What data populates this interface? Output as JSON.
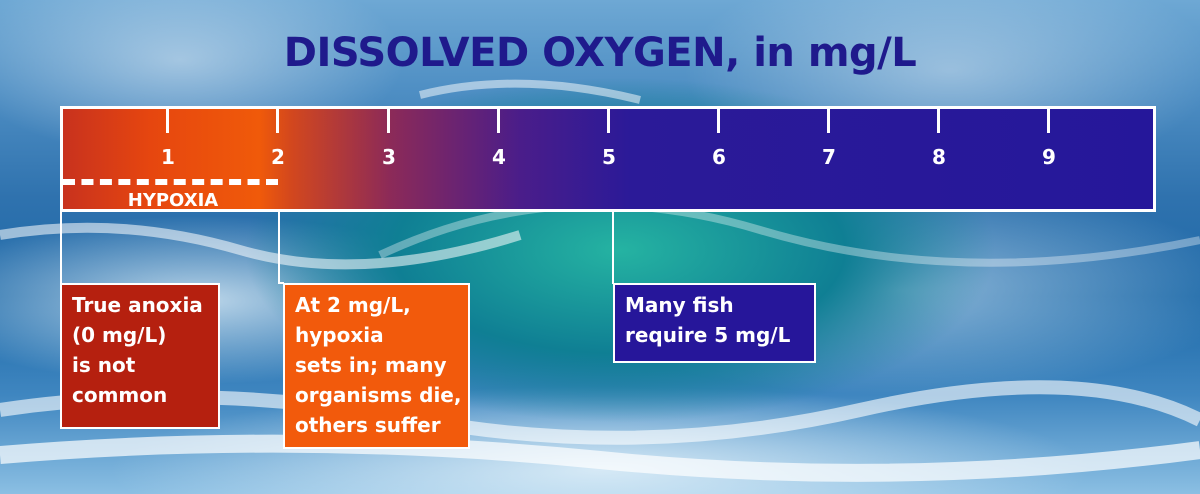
{
  "title": "DISSOLVED OXYGEN, in mg/L",
  "scale": {
    "ticks": [
      "1",
      "2",
      "3",
      "4",
      "5",
      "6",
      "7",
      "8",
      "9"
    ],
    "hypoxia_label": "HYPOXIA",
    "gradient_colors": [
      "#c8321e",
      "#f05a0a",
      "#4a1d8a",
      "#25179a"
    ]
  },
  "callouts": [
    {
      "lines": [
        "True anoxia",
        "(0 mg/L)",
        "is not",
        "common"
      ],
      "color": "#b5200f"
    },
    {
      "lines": [
        "At 2 mg/L,",
        "hypoxia",
        "sets in; many",
        "organisms die,",
        "others suffer"
      ],
      "color": "#f25a0c"
    },
    {
      "lines": [
        "Many fish",
        "require 5 mg/L"
      ],
      "color": "#26169a"
    }
  ]
}
